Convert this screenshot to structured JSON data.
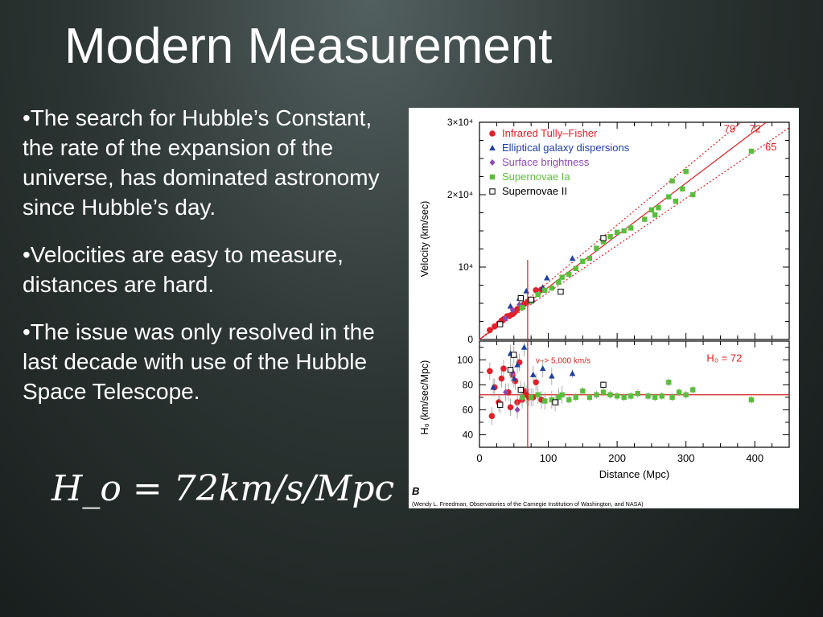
{
  "slide": {
    "title": "Modern Measurement",
    "bullets": [
      "•The search for Hubble’s Constant, the rate of the expansion of the universe, has dominated astronomy since Hubble’s day.",
      "•Velocities are easy to measure, distances are hard.",
      "•The issue was only resolved in the last decade with use of the Hubble Space Telescope."
    ],
    "equation": "H_o = 72km/s/Mpc"
  },
  "figure": {
    "panel_label": "B",
    "credit": "(Wendy L. Freedman, Observatories of the Carnegie Institution of Washington, and NASA)"
  },
  "chart_data": [
    {
      "type": "scatter",
      "panel": "top",
      "xlabel": "",
      "ylabel": "Velocity (km/sec)",
      "xlim": [
        0,
        450
      ],
      "ylim": [
        0,
        30000
      ],
      "yticks": [
        {
          "value": 0,
          "label": "0"
        },
        {
          "value": 10000,
          "label": "10⁴"
        },
        {
          "value": 20000,
          "label": "2×10⁴"
        },
        {
          "value": 30000,
          "label": "3×10⁴"
        }
      ],
      "lines": [
        {
          "label": "72",
          "slope": 72,
          "style": "solid",
          "color": "#d62020"
        },
        {
          "label": "79",
          "slope": 79,
          "style": "dotted",
          "color": "#d62020"
        },
        {
          "label": "65",
          "slope": 65,
          "style": "dotted",
          "color": "#d62020"
        }
      ],
      "legend_position": "top-left",
      "series": [
        {
          "name": "Infrared Tully–Fisher",
          "color": "#e0202a",
          "marker": "circle",
          "points": [
            [
              15,
              1300
            ],
            [
              22,
              1800
            ],
            [
              28,
              2200
            ],
            [
              32,
              2600
            ],
            [
              35,
              2800
            ],
            [
              40,
              3200
            ],
            [
              44,
              3300
            ],
            [
              48,
              3500
            ],
            [
              52,
              3900
            ],
            [
              55,
              4200
            ],
            [
              60,
              4600
            ],
            [
              65,
              4900
            ],
            [
              70,
              5200
            ],
            [
              75,
              5500
            ],
            [
              82,
              6800
            ],
            [
              90,
              6900
            ]
          ]
        },
        {
          "name": "Elliptical galaxy dispersions",
          "color": "#1f3f9f",
          "marker": "triangle",
          "points": [
            [
              45,
              4600
            ],
            [
              58,
              5700
            ],
            [
              68,
              6700
            ],
            [
              92,
              7200
            ],
            [
              98,
              8500
            ],
            [
              135,
              11200
            ]
          ]
        },
        {
          "name": "Surface brightness",
          "color": "#8a4ab0",
          "marker": "diamond",
          "points": [
            [
              38,
              2900
            ],
            [
              48,
              4100
            ],
            [
              58,
              4800
            ],
            [
              78,
              5300
            ]
          ]
        },
        {
          "name": "Supernovae Ia",
          "color": "#5bbd3c",
          "marker": "square",
          "points": [
            [
              62,
              4400
            ],
            [
              75,
              5300
            ],
            [
              85,
              6200
            ],
            [
              95,
              6800
            ],
            [
              105,
              7100
            ],
            [
              115,
              7900
            ],
            [
              120,
              8600
            ],
            [
              130,
              9000
            ],
            [
              140,
              9800
            ],
            [
              150,
              10800
            ],
            [
              160,
              11200
            ],
            [
              170,
              12600
            ],
            [
              180,
              13500
            ],
            [
              190,
              14200
            ],
            [
              200,
              14800
            ],
            [
              210,
              15000
            ],
            [
              220,
              15400
            ],
            [
              240,
              16600
            ],
            [
              250,
              17900
            ],
            [
              255,
              17200
            ],
            [
              260,
              18200
            ],
            [
              275,
              19700
            ],
            [
              280,
              21900
            ],
            [
              285,
              19100
            ],
            [
              295,
              20800
            ],
            [
              300,
              23200
            ],
            [
              310,
              20000
            ],
            [
              395,
              26000
            ]
          ]
        },
        {
          "name": "Supernovae II",
          "color": "#000000",
          "marker": "open-square",
          "points": [
            [
              30,
              2100
            ],
            [
              60,
              5700
            ],
            [
              75,
              5500
            ],
            [
              118,
              6600
            ],
            [
              180,
              14000
            ]
          ]
        }
      ]
    },
    {
      "type": "scatter",
      "panel": "bottom",
      "xlabel": "Distance (Mpc)",
      "ylabel": "H₀ (km/sec/Mpc)",
      "xlim": [
        0,
        450
      ],
      "ylim": [
        30,
        115
      ],
      "xticks": [
        0,
        100,
        200,
        300,
        400
      ],
      "yticks": [
        40,
        60,
        80,
        100
      ],
      "reference": {
        "label": "H₀ = 72",
        "value": 72
      },
      "cutoff": {
        "label": "v–> 5,000 km/s",
        "x": 70
      },
      "series": [
        {
          "name": "Infrared Tully–Fisher",
          "color": "#e0202a",
          "marker": "circle",
          "points": [
            [
              15,
              91
            ],
            [
              18,
              55
            ],
            [
              22,
              78
            ],
            [
              28,
              66
            ],
            [
              32,
              85
            ],
            [
              35,
              93
            ],
            [
              42,
              74
            ],
            [
              45,
              62
            ],
            [
              48,
              88
            ],
            [
              52,
              83
            ],
            [
              55,
              66
            ],
            [
              58,
              98
            ],
            [
              62,
              68
            ],
            [
              65,
              75
            ],
            [
              68,
              72
            ],
            [
              72,
              70
            ],
            [
              78,
              70
            ],
            [
              82,
              82
            ],
            [
              90,
              68
            ]
          ]
        },
        {
          "name": "Elliptical galaxy dispersions",
          "color": "#1f3f9f",
          "marker": "triangle",
          "points": [
            [
              20,
              78
            ],
            [
              45,
              105
            ],
            [
              50,
              85
            ],
            [
              55,
              96
            ],
            [
              65,
              110
            ],
            [
              78,
              88
            ],
            [
              92,
              93
            ],
            [
              105,
              87
            ],
            [
              135,
              89
            ]
          ]
        },
        {
          "name": "Surface brightness",
          "color": "#8a4ab0",
          "marker": "diamond",
          "points": [
            [
              38,
              74
            ],
            [
              48,
              90
            ],
            [
              55,
              60
            ]
          ]
        },
        {
          "name": "Supernovae Ia",
          "color": "#5bbd3c",
          "marker": "square",
          "points": [
            [
              62,
              70
            ],
            [
              75,
              70
            ],
            [
              85,
              72
            ],
            [
              95,
              67
            ],
            [
              105,
              68
            ],
            [
              115,
              70
            ],
            [
              120,
              72
            ],
            [
              130,
              68
            ],
            [
              140,
              70
            ],
            [
              150,
              75
            ],
            [
              160,
              70
            ],
            [
              170,
              72
            ],
            [
              180,
              74
            ],
            [
              190,
              72
            ],
            [
              200,
              71
            ],
            [
              210,
              70
            ],
            [
              220,
              71
            ],
            [
              230,
              73
            ],
            [
              245,
              71
            ],
            [
              255,
              70
            ],
            [
              265,
              71
            ],
            [
              275,
              82
            ],
            [
              280,
              70
            ],
            [
              290,
              74
            ],
            [
              300,
              72
            ],
            [
              310,
              76
            ],
            [
              395,
              68
            ]
          ]
        },
        {
          "name": "Supernovae II",
          "color": "#000000",
          "marker": "open-square",
          "points": [
            [
              30,
              64
            ],
            [
              45,
              92
            ],
            [
              50,
              104
            ],
            [
              60,
              76
            ],
            [
              110,
              66
            ],
            [
              180,
              80
            ]
          ]
        }
      ]
    }
  ]
}
